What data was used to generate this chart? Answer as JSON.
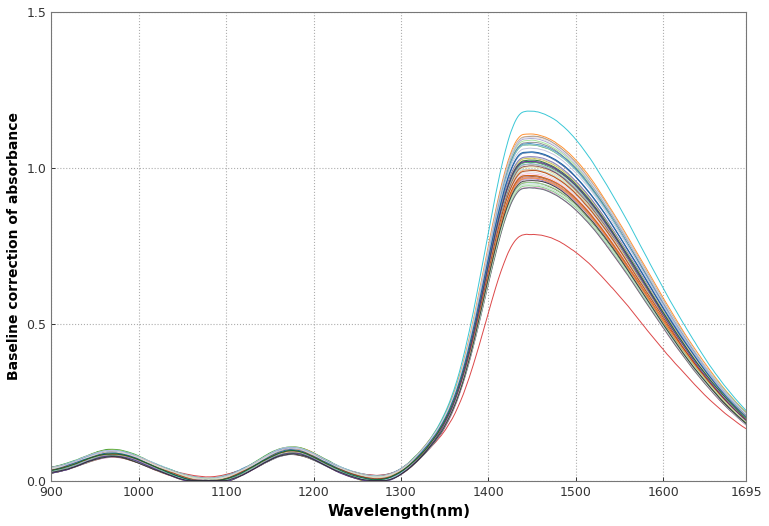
{
  "title": "",
  "xlabel": "Wavelength(nm)",
  "ylabel": "Baseline correction of absorbance",
  "xlim": [
    900,
    1695
  ],
  "ylim": [
    0,
    1.5
  ],
  "xticks": [
    900,
    1000,
    1100,
    1200,
    1300,
    1400,
    1500,
    1600,
    1695
  ],
  "yticks": [
    0.0,
    0.5,
    1.0,
    1.5
  ],
  "grid_color": "#aaaaaa",
  "background_color": "#ffffff",
  "n_spectra": 50,
  "seed": 42,
  "line_width": 0.7,
  "colors": [
    "#1f77b4",
    "#ff7f0e",
    "#2ca02c",
    "#d62728",
    "#9467bd",
    "#8c564b",
    "#e377c2",
    "#7f7f7f",
    "#bcbd22",
    "#17becf",
    "#aec7e8",
    "#ffbb78",
    "#98df8a",
    "#ff9896",
    "#c5b0d5",
    "#c49c94",
    "#f7b6d2",
    "#c7c7c7",
    "#dbdb8d",
    "#9edae5",
    "#393b79",
    "#637939",
    "#8c6d31",
    "#843c39",
    "#7b4173",
    "#3182bd",
    "#e6550d",
    "#31a354",
    "#756bb1",
    "#636363",
    "#6baed6",
    "#fd8d3c",
    "#74c476",
    "#9e9ac8",
    "#969696",
    "#9ecae1",
    "#fdae6b",
    "#a1d99b",
    "#bcbddc",
    "#bdbdbd",
    "#c6dbef",
    "#fdd0a2",
    "#c7e9c0",
    "#dadaeb",
    "#d9d9d9",
    "#08519c",
    "#a63603",
    "#006d2c",
    "#54278f",
    "#252525",
    "#00ced1",
    "#ff6347",
    "#32cd32",
    "#8b008b",
    "#ff8c00"
  ]
}
